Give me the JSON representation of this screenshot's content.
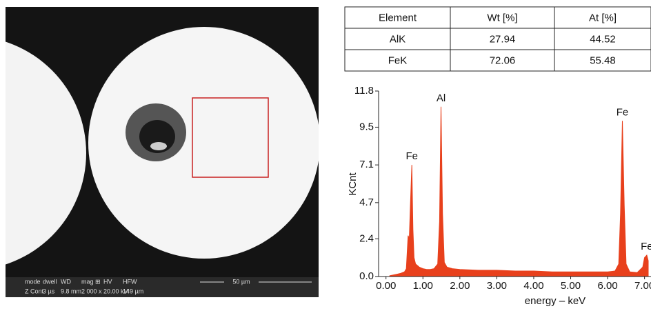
{
  "sem": {
    "info_bar": {
      "headers": [
        "mode",
        "dwell",
        "WD",
        "mag ⊞",
        "HV",
        "HFW"
      ],
      "values": [
        "Z Cont",
        "3 µs",
        "9.8 mm",
        "2 000 x",
        "20.00 kV",
        "149 µm"
      ]
    },
    "scale_bar": "50 µm"
  },
  "table": {
    "header": [
      "Element",
      "Wt [%]",
      "At [%]"
    ],
    "rows": [
      [
        "AlK",
        "27.94",
        "44.52"
      ],
      [
        "FeK",
        "72.06",
        "55.48"
      ]
    ]
  },
  "chart_data": {
    "type": "area",
    "x_label": "energy – keV",
    "y_label": "KCnt",
    "color": "#e8401c",
    "x": [
      0.1,
      0.2,
      0.3,
      0.4,
      0.5,
      0.55,
      0.6,
      0.63,
      0.66,
      0.7,
      0.73,
      0.76,
      0.8,
      0.9,
      1.0,
      1.1,
      1.2,
      1.3,
      1.4,
      1.45,
      1.49,
      1.53,
      1.58,
      1.65,
      1.8,
      2.0,
      2.5,
      3.0,
      3.5,
      4.0,
      4.5,
      5.0,
      5.5,
      6.0,
      6.2,
      6.3,
      6.35,
      6.4,
      6.45,
      6.5,
      6.6,
      6.8,
      6.95,
      7.0,
      7.06,
      7.1
    ],
    "values": [
      0.05,
      0.1,
      0.15,
      0.2,
      0.3,
      0.5,
      2.6,
      2.4,
      4.5,
      7.1,
      3.0,
      1.2,
      0.8,
      0.6,
      0.5,
      0.45,
      0.45,
      0.5,
      0.8,
      3.5,
      10.8,
      4.0,
      0.9,
      0.6,
      0.5,
      0.45,
      0.4,
      0.4,
      0.35,
      0.35,
      0.3,
      0.3,
      0.3,
      0.3,
      0.35,
      0.8,
      4.0,
      9.9,
      4.5,
      0.8,
      0.3,
      0.25,
      0.6,
      1.2,
      1.36,
      1.0
    ],
    "xlim": [
      -0.2,
      7.1
    ],
    "ylim": [
      0,
      11.8
    ],
    "xticks": [
      {
        "value": 0,
        "label": "0.00"
      },
      {
        "value": 1,
        "label": "1.00"
      },
      {
        "value": 2,
        "label": "2.00"
      },
      {
        "value": 3,
        "label": "3.00"
      },
      {
        "value": 4,
        "label": "4.00"
      },
      {
        "value": 5,
        "label": "5.00"
      },
      {
        "value": 6,
        "label": "6.00"
      },
      {
        "value": 7,
        "label": "7.00"
      }
    ],
    "yticks": [
      {
        "value": 0,
        "label": "0.0"
      },
      2.4,
      4.7,
      7.1,
      9.5,
      11.8
    ],
    "annotations": [
      {
        "text": "Fe",
        "x": 0.7
      },
      {
        "text": "Al",
        "x": 1.49
      },
      {
        "text": "Fe",
        "x": 6.4
      },
      {
        "text": "Fe",
        "x": 7.06
      }
    ]
  }
}
